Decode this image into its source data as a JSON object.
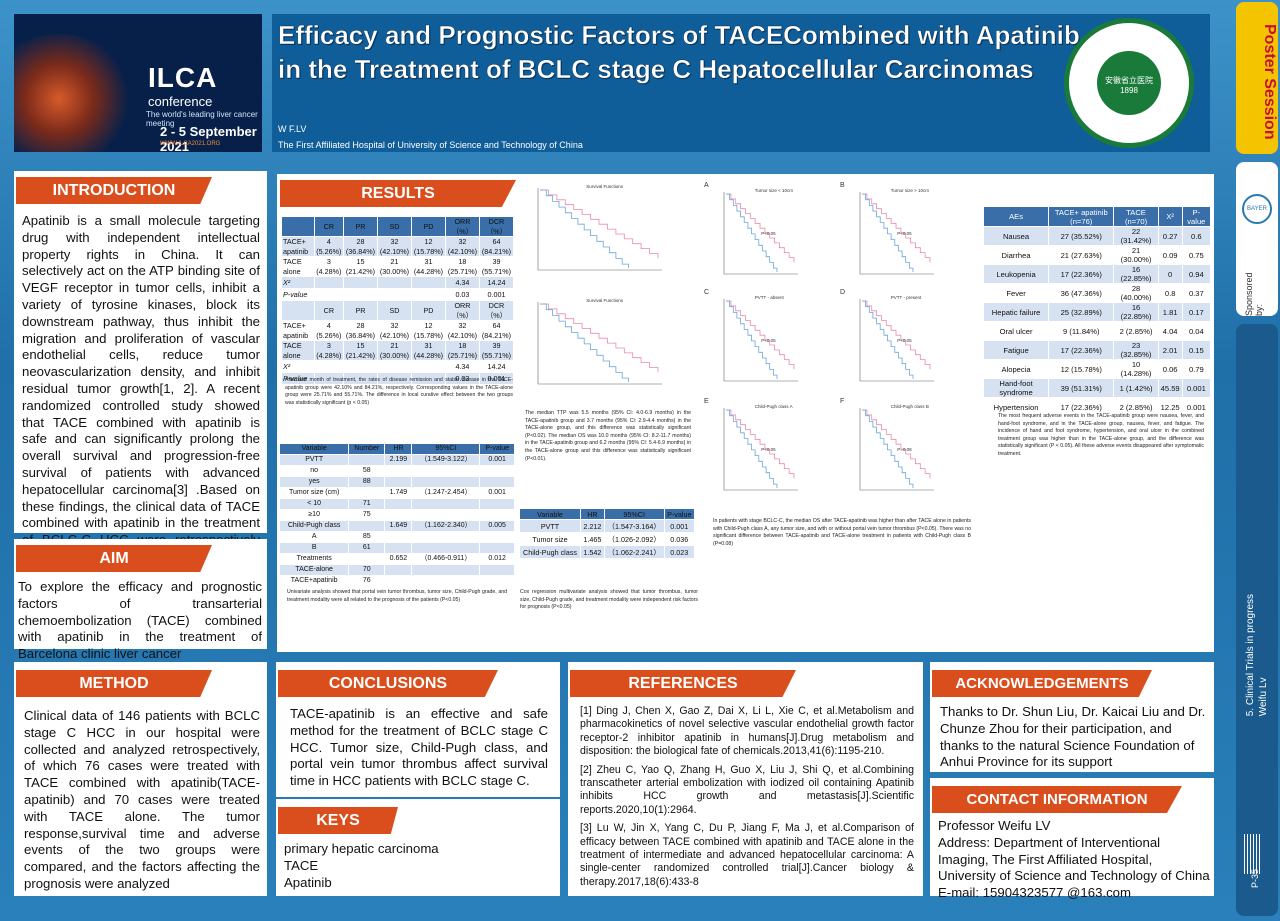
{
  "conference": {
    "name": "ILCA",
    "sub": "conference",
    "tagline": "The world's leading liver cancer meeting",
    "dates": "2 - 5 September 2021",
    "url": "WWW.ILCA2021.ORG"
  },
  "header": {
    "title": "Efficacy and Prognostic Factors of TACECombined with Apatinib in the Treatment of BCLC stage C Hepatocellular Carcinomas",
    "author": "W F.LV",
    "affiliation": "The First Affiliated Hospital of University of Science and Technology of China",
    "seal_text": "安徽省立医院 1898"
  },
  "sidebar": {
    "badge": "Poster Session",
    "sponsored": "Sponsored by:",
    "bayer": "BAYER",
    "track": "5. Clinical Trials in progress",
    "author": "Weifu Lv",
    "page": "P-35",
    "code": "ILCA2021"
  },
  "intro": {
    "heading": "INTRODUCTION",
    "text": "Apatinib is a small molecule targeting drug with independent intellectual property rights in China. It can selectively act on the ATP binding site of VEGF receptor in tumor cells, inhibit a variety of tyrosine kinases, block its downstream pathway, thus inhibit the migration and proliferation of vascular endothelial cells, reduce tumor neovascularization density, and inhibit residual tumor growth[1, 2]. A recent randomized controlled study showed that TACE combined with apatinib is safe and can significantly prolong the overall survival and progression-free survival of patients with advanced hepatocellular carcinoma[3] .Based on these findings, the clinical data of TACE combined with apatinib in the treatment of BCLC-C HCC were retrospectively evaluated"
  },
  "aim": {
    "heading": "AIM",
    "text": "To explore the efficacy and prognostic factors of transarterial chemoembolization (TACE) combined with apatinib in the treatment of Barcelona clinic liver cancer"
  },
  "method": {
    "heading": "METHOD",
    "text": "Clinical data of 146 patients with BCLC stage C HCC in our hospital were collected and analyzed retrospectively, of which 76 cases were treated with TACE combined with apatinib(TACE-apatinib) and 70 cases were treated with TACE alone. The tumor response,survival time and adverse events of the two groups were compared, and the factors affecting the prognosis were analyzed"
  },
  "results": {
    "heading": "RESULTS"
  },
  "table1": {
    "headers": [
      "",
      "CR",
      "PR",
      "SD",
      "PD",
      "ORR（%）",
      "DCR（%）"
    ],
    "rows": [
      [
        "TACE+ apatinib",
        "4 (5.26%)",
        "28 (36.84%)",
        "32 (42.10%)",
        "12 (15.78%)",
        "32 (42.10%)",
        "64 (84.21%)"
      ],
      [
        "TACE alone",
        "3 (4.28%)",
        "15 (21.42%)",
        "21 (30.00%)",
        "31 (44.28%)",
        "18 (25.71%)",
        "39 (55.71%)"
      ],
      [
        "X²",
        "",
        "",
        "",
        "",
        "4.34",
        "14.24"
      ],
      [
        "P-value",
        "",
        "",
        "",
        "",
        "0.03",
        "0.001"
      ],
      [
        "",
        "CR",
        "PR",
        "SD",
        "PD",
        "ORR（%）",
        "DCR（%）"
      ],
      [
        "TACE+ apatinib",
        "4 (5.26%)",
        "28 (36.84%)",
        "32 (42.10%)",
        "12 (15.78%)",
        "32 (42.10%)",
        "64 (84.21%)"
      ],
      [
        "TACE alone",
        "3 (4.28%)",
        "15 (21.42%)",
        "21 (30.00%)",
        "31 (44.28%)",
        "18 (25.71%)",
        "39 (55.71%)"
      ],
      [
        "X²",
        "",
        "",
        "",
        "",
        "4.34",
        "14.24"
      ],
      [
        "P-value",
        "",
        "",
        "",
        "",
        "0.03",
        "0.001"
      ]
    ],
    "caption": "After one month of treatment, the rates of disease remission and stable disease in the TACE-apatinib group were 42.10% and 84.21%, respectively. Corresponding values in the TACE-alone group were 25.71% and 55.71%. The difference in local curative effect between the two groups was statistically significant (p < 0.05)"
  },
  "table2": {
    "headers": [
      "Variable",
      "Number",
      "HR",
      "95%CI",
      "P-value"
    ],
    "rows": [
      [
        "PVTT",
        "",
        "2.199",
        "（1.549-3.122）",
        "0.001"
      ],
      [
        "no",
        "58",
        "",
        "",
        ""
      ],
      [
        "yes",
        "88",
        "",
        "",
        ""
      ],
      [
        "Tumor size (cm)",
        "",
        "1.749",
        "（1.247-2.454）",
        "0.001"
      ],
      [
        "< 10",
        "71",
        "",
        "",
        ""
      ],
      [
        "≥10",
        "75",
        "",
        "",
        ""
      ],
      [
        "Child-Pugh class",
        "",
        "1.649",
        "（1.162-2.340）",
        "0.005"
      ],
      [
        "A",
        "85",
        "",
        "",
        ""
      ],
      [
        "B",
        "61",
        "",
        "",
        ""
      ],
      [
        "Treatments",
        "",
        "0.652",
        "（0.466-0.911）",
        "0.012"
      ],
      [
        "TACE-alone",
        "70",
        "",
        "",
        ""
      ],
      [
        "TACE+apatinib",
        "76",
        "",
        "",
        ""
      ]
    ],
    "caption": "Univariate analysis showed that portal vein tumor thrombus, tumor size, Child-Pugh grade, and treatment modality were all related to the prognosis of the patients (P<0.05)"
  },
  "table3": {
    "headers": [
      "Variable",
      "HR",
      "95%CI",
      "P-value"
    ],
    "rows": [
      [
        "PVTT",
        "2.212",
        "（1.547-3.164）",
        "0.001"
      ],
      [
        "Tumor size",
        "1.465",
        "（1.026-2.092）",
        "0.036"
      ],
      [
        "Child-Pugh class",
        "1.542",
        "（1.062-2.241）",
        "0.023"
      ]
    ],
    "caption": "Cox regression multivariate analysis showed that tumor thrombus, tumor size, Child-Pugh grade, and treatment modality were independent risk factors for prognosis (P<0.05)"
  },
  "km_text": "The median TTP was 5.5 months (95% CI: 4.0-6.9 months) in the TACE-apatinib group and 3.7 months (95% CI: 2.9-4.4 months) in the TACE-alone group, and this difference was statistically significant (P<0.02). The median OS was 10.0 months (95% CI: 8.2-11.7 months) in the TACE-apatinib group and 6.2 months (95% CI: 5.4-6.9 months) in the TACE-alone group and this difference was statistically significant (P<0.01).",
  "subgroup_text": "In patients with stage BCLC-C, the median OS after TACE-apatinib was higher than after TACE alone in patients with Child-Pugh class A, any tumor size, and with or without portal vein tumor thrombus (P<0.05). There was no significant difference between TACE-apatinib and TACE-alone treatment in patients with Child-Pugh class B (P=0.08)",
  "table4": {
    "headers": [
      "AEs",
      "TACE+ apatinib (n=76)",
      "TACE (n=70)",
      "X²",
      "P-value"
    ],
    "rows": [
      [
        "Nausea",
        "27 (35.52%)",
        "22 (31.42%)",
        "0.27",
        "0.6"
      ],
      [
        "Diarrhea",
        "21 (27.63%)",
        "21 (30.00%)",
        "0.09",
        "0.75"
      ],
      [
        "Leukopenia",
        "17 (22.36%)",
        "16 (22.85%)",
        "0",
        "0.94"
      ],
      [
        "Fever",
        "36 (47.36%)",
        "28 (40.00%)",
        "0.8",
        "0.37"
      ],
      [
        "Hepatic failure",
        "25 (32.89%)",
        "16 (22.85%)",
        "1.81",
        "0.17"
      ],
      [
        "Oral ulcer",
        "9 (11.84%)",
        "2 (2.85%)",
        "4.04",
        "0.04"
      ],
      [
        "Fatigue",
        "17 (22.36%)",
        "23 (32.85%)",
        "2.01",
        "0.15"
      ],
      [
        "Alopecia",
        "12 (15.78%)",
        "10 (14.28%)",
        "0.06",
        "0.79"
      ],
      [
        "Hand-foot syndrome",
        "39 (51.31%)",
        "1 (1.42%)",
        "45.59",
        "0.001"
      ],
      [
        "Hypertension",
        "17 (22.36%)",
        "2 (2.85%)",
        "12.25",
        "0.001"
      ]
    ],
    "caption": "The most frequent adverse events in the TACE-apatinib group were nausea, fever, and hand-foot syndrome, and in the TACE-alone group, nausea, fever, and fatigue. The incidence of hand and foot syndrome, hypertension, and oral ulcer in the combined treatment group was higher than in the TACE-alone group, and the difference was statistically significant (P < 0.05). All these adverse events disappeared after symptomatic treatment."
  },
  "km_panels": [
    {
      "label": "",
      "title": "Survival Functions",
      "pval": ""
    },
    {
      "label": "",
      "title": "Survival Functions",
      "pval": ""
    },
    {
      "label": "A",
      "title": "Tumor size < 10cm",
      "pval": "P<0.05"
    },
    {
      "label": "B",
      "title": "Tumor size > 10cm",
      "pval": "P<0.05"
    },
    {
      "label": "C",
      "title": "PVTT - absent",
      "pval": "P<0.05"
    },
    {
      "label": "D",
      "title": "PVTT - present",
      "pval": "P<0.05"
    },
    {
      "label": "E",
      "title": "Child-Pugh class A",
      "pval": "P<0.05"
    },
    {
      "label": "F",
      "title": "Child-Pugh class B",
      "pval": "P=0.08"
    }
  ],
  "colors": {
    "accent": "#d94e1c",
    "table_head": "#3a6ea8",
    "table_row": "#d6e2f1",
    "km_a": "#e88aa8",
    "km_b": "#6aa6dc"
  },
  "conclusions": {
    "heading": "CONCLUSIONS",
    "text": "TACE-apatinib is an effective and safe method for the treatment of BCLC stage C HCC. Tumor size, Child-Pugh class, and portal vein tumor thrombus affect survival time in HCC patients with BCLC stage C."
  },
  "keys": {
    "heading": "KEYS",
    "items": [
      "primary hepatic carcinoma",
      "TACE",
      "Apatinib"
    ]
  },
  "references": {
    "heading": "REFERENCES",
    "items": [
      "[1] Ding J, Chen X, Gao Z, Dai X, Li L, Xie C, et al.Metabolism and pharmacokinetics of novel selective vascular endothelial growth factor receptor-2 inhibitor apatinib in humans[J].Drug metabolism and disposition: the biological fate of chemicals.2013,41(6):1195-210.",
      "[2] Zheu C, Yao Q, Zhang H, Guo X, Liu J, Shi Q, et al.Combining transcatheter arterial embolization with iodized oil containing Apatinib inhibits HCC growth and metastasis[J].Scientific reports.2020,10(1):2964.",
      "[3] Lu W, Jin X, Yang C, Du P, Jiang F, Ma J, et al.Comparison of efficacy between TACE combined with apatinib and TACE alone in the treatment of intermediate and advanced hepatocellular carcinoma: A single-center randomized controlled trial[J].Cancer biology & therapy.2017,18(6):433-8"
    ]
  },
  "ack": {
    "heading": "ACKNOWLEDGEMENTS",
    "text": "Thanks to Dr. Shun Liu, Dr. Kaicai Liu and Dr. Chunze Zhou for their participation, and thanks to the natural Science Foundation of Anhui Province for its support"
  },
  "contact": {
    "heading": "CONTACT INFORMATION",
    "lines": [
      "Professor Weifu LV",
      "Address: Department of Interventional Imaging, The First Affiliated Hospital, University of Science and Technology of China",
      "E-mail: 15904323577 @163.com"
    ]
  }
}
